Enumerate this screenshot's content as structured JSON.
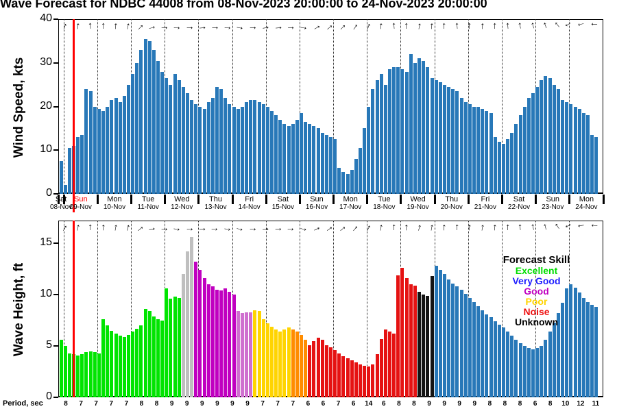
{
  "title": "& Wave Forecast for NDBC 44008 from 08-Nov-2023 20:00:00 to 24-Nov-2023 20:00:00",
  "period_label": "Period, sec",
  "period_sec": [
    8,
    7,
    7,
    7,
    7,
    8,
    8,
    9,
    9,
    9,
    9,
    9,
    9,
    7,
    7,
    7,
    6,
    6,
    7,
    6,
    14,
    6,
    8,
    8,
    9,
    9,
    9,
    9,
    8,
    8,
    8,
    6,
    8,
    10,
    12,
    11
  ],
  "now_line": {
    "color": "#ff0000",
    "hour": 11
  },
  "days": [
    {
      "name": "Sat",
      "date": "08-Nov",
      "color": "#000000"
    },
    {
      "name": "Sun",
      "date": "09-Nov",
      "color": "#ff0000"
    },
    {
      "name": "Mon",
      "date": "10-Nov",
      "color": "#000000"
    },
    {
      "name": "Tue",
      "date": "11-Nov",
      "color": "#000000"
    },
    {
      "name": "Wed",
      "date": "12-Nov",
      "color": "#000000"
    },
    {
      "name": "Thu",
      "date": "13-Nov",
      "color": "#000000"
    },
    {
      "name": "Fri",
      "date": "14-Nov",
      "color": "#000000"
    },
    {
      "name": "Sat",
      "date": "15-Nov",
      "color": "#000000"
    },
    {
      "name": "Sun",
      "date": "16-Nov",
      "color": "#000000"
    },
    {
      "name": "Mon",
      "date": "17-Nov",
      "color": "#000000"
    },
    {
      "name": "Tue",
      "date": "18-Nov",
      "color": "#000000"
    },
    {
      "name": "Wed",
      "date": "19-Nov",
      "color": "#000000"
    },
    {
      "name": "Thu",
      "date": "20-Nov",
      "color": "#000000"
    },
    {
      "name": "Fri",
      "date": "21-Nov",
      "color": "#000000"
    },
    {
      "name": "Sat",
      "date": "22-Nov",
      "color": "#000000"
    },
    {
      "name": "Sun",
      "date": "23-Nov",
      "color": "#000000"
    },
    {
      "name": "Mon",
      "date": "24-Nov",
      "color": "#000000"
    }
  ],
  "legend": {
    "title": "Forecast Skill",
    "items": [
      {
        "label": "Excellent",
        "color": "#00dd00"
      },
      {
        "label": "Very Good",
        "color": "#2020ff"
      },
      {
        "label": "Good",
        "color": "#c000c0"
      },
      {
        "label": "Poor",
        "color": "#ffd400"
      },
      {
        "label": "Noise",
        "color": "#ee1111"
      },
      {
        "label": "Unknown",
        "color": "#000000"
      }
    ]
  },
  "chart_data": [
    {
      "type": "bar",
      "name": "wind",
      "ylabel": "Wind Speed, kts",
      "yticks": [
        0,
        10,
        20,
        30,
        40
      ],
      "ylim": [
        0,
        40
      ],
      "bar_color": "#2878b8",
      "time_start": "08-Nov-2023 20:00",
      "hours_total": 388,
      "bar_interval_hours": 3,
      "values": [
        7.5,
        2,
        10.5,
        11,
        13,
        13.5,
        24,
        23.5,
        20,
        19.5,
        19,
        20,
        21.5,
        22,
        21,
        22.5,
        25,
        27.5,
        30,
        33,
        35.5,
        35,
        33,
        30.5,
        28,
        26.5,
        25,
        27.5,
        26,
        24.5,
        23,
        21.5,
        20.5,
        20,
        19.5,
        21,
        22,
        24.5,
        24,
        22,
        20.5,
        20,
        19.5,
        20,
        21,
        21.5,
        21.5,
        21,
        20.5,
        20,
        19,
        18,
        17,
        16,
        15.5,
        16,
        17,
        18.5,
        16.5,
        16,
        15.5,
        15,
        14,
        13.5,
        13,
        12.5,
        6,
        5,
        4.5,
        5.5,
        8,
        10.5,
        15,
        20,
        24,
        26,
        27.5,
        25,
        28.5,
        29,
        29,
        28.5,
        28,
        32,
        30,
        31,
        30.5,
        29,
        26.5,
        26,
        25.5,
        25,
        24.5,
        24,
        23.5,
        22,
        21,
        20.5,
        20,
        20,
        19.5,
        19,
        18.5,
        13,
        12,
        11.5,
        12.5,
        14,
        16,
        18,
        20,
        22,
        23,
        24.5,
        26,
        27,
        26.5,
        25,
        24,
        21.5,
        21,
        20.5,
        20,
        19.5,
        18.5,
        18,
        13.5,
        13
      ],
      "arrows_deg": [
        -70,
        -85,
        -95,
        -90,
        -85,
        -80,
        -45,
        -15,
        0,
        5,
        0,
        -5,
        0,
        5,
        10,
        0,
        -10,
        -5,
        0,
        10,
        -30,
        -40,
        -45,
        -55,
        -70,
        -85,
        -95,
        -90,
        -80,
        -85,
        -90,
        -95,
        -90,
        -85,
        -90,
        -95,
        -100,
        -105,
        -110,
        -130,
        150,
        165,
        180
      ]
    },
    {
      "type": "bar",
      "name": "wave",
      "ylabel": "Wave Height, ft",
      "yticks": [
        0,
        5,
        10,
        15
      ],
      "ylim": [
        0,
        17.2
      ],
      "values": [
        5.6,
        5.0,
        4.3,
        4.2,
        4.1,
        4.2,
        4.4,
        4.5,
        4.4,
        4.3,
        7.6,
        7.0,
        6.5,
        6.2,
        6.0,
        5.9,
        6.1,
        6.4,
        6.7,
        7.0,
        8.6,
        8.4,
        7.9,
        7.6,
        7.5,
        10.6,
        9.6,
        9.8,
        9.7,
        12.0,
        14.2,
        15.6,
        13.2,
        12.4,
        11.6,
        11.0,
        10.8,
        10.5,
        10.4,
        10.6,
        10.3,
        10.0,
        8.4,
        8.2,
        8.3,
        8.3,
        8.5,
        8.4,
        7.6,
        7.2,
        6.9,
        6.6,
        6.4,
        6.6,
        6.8,
        6.6,
        6.4,
        6.1,
        5.6,
        5.1,
        5.5,
        5.8,
        5.6,
        5.1,
        4.9,
        4.6,
        4.3,
        4.0,
        3.8,
        3.6,
        3.4,
        3.2,
        3.1,
        3.0,
        3.2,
        4.2,
        5.7,
        6.6,
        6.4,
        6.2,
        11.9,
        12.6,
        11.6,
        11.0,
        10.9,
        10.3,
        10.0,
        9.9,
        11.8,
        12.8,
        12.4,
        12.0,
        11.5,
        11.1,
        10.8,
        10.5,
        10.1,
        9.7,
        9.3,
        8.9,
        8.5,
        8.1,
        7.8,
        7.4,
        7.1,
        6.8,
        6.4,
        6.0,
        5.6,
        5.3,
        5.0,
        4.8,
        4.7,
        4.8,
        5.0,
        5.6,
        6.4,
        7.3,
        8.2,
        9.2,
        10.6,
        11.0,
        10.7,
        10.2,
        9.7,
        9.3,
        9.0,
        8.8
      ],
      "skill": [
        "E",
        "E",
        "E",
        "E",
        "E",
        "E",
        "E",
        "E",
        "E",
        "E",
        "E",
        "E",
        "E",
        "E",
        "E",
        "E",
        "E",
        "E",
        "E",
        "E",
        "E",
        "E",
        "E",
        "E",
        "E",
        "E",
        "E",
        "E",
        "E",
        "X",
        "X",
        "X",
        "G",
        "G",
        "G",
        "G",
        "G",
        "G",
        "G",
        "G",
        "G",
        "G",
        "L",
        "L",
        "L",
        "L",
        "P",
        "P",
        "P",
        "P",
        "P",
        "P",
        "P",
        "P",
        "P",
        "O",
        "O",
        "O",
        "O",
        "N",
        "N",
        "N",
        "N",
        "N",
        "N",
        "N",
        "N",
        "N",
        "N",
        "N",
        "N",
        "N",
        "N",
        "N",
        "N",
        "N",
        "N",
        "N",
        "N",
        "N",
        "N",
        "N",
        "N",
        "N",
        "N",
        "U",
        "U",
        "U",
        "U",
        "V",
        "V",
        "V",
        "V",
        "V",
        "V",
        "V",
        "V",
        "V",
        "V",
        "V",
        "V",
        "V",
        "V",
        "V",
        "V",
        "V",
        "V",
        "V",
        "V",
        "V",
        "V",
        "V",
        "V",
        "V",
        "V",
        "V",
        "V",
        "V",
        "V",
        "V",
        "V",
        "V",
        "V",
        "V",
        "V",
        "V",
        "V",
        "V"
      ],
      "skill_palette": {
        "E": "#00e400",
        "X": "#bfbfbf",
        "G": "#c000c0",
        "L": "#cf6fcf",
        "P": "#ffd400",
        "O": "#ff8c00",
        "N": "#e51212",
        "U": "#141414",
        "V": "#2878b8"
      },
      "arrows_deg": [
        -60,
        -80,
        -90,
        -85,
        -80,
        -75,
        -40,
        -10,
        5,
        10,
        5,
        0,
        5,
        10,
        15,
        5,
        -5,
        0,
        5,
        15,
        -25,
        -35,
        -40,
        -50,
        -65,
        -80,
        -90,
        -85,
        -75,
        -80,
        -85,
        -90,
        -85,
        -80,
        -85,
        -90,
        -95,
        -100,
        -105,
        -125,
        155,
        170,
        185
      ]
    }
  ]
}
